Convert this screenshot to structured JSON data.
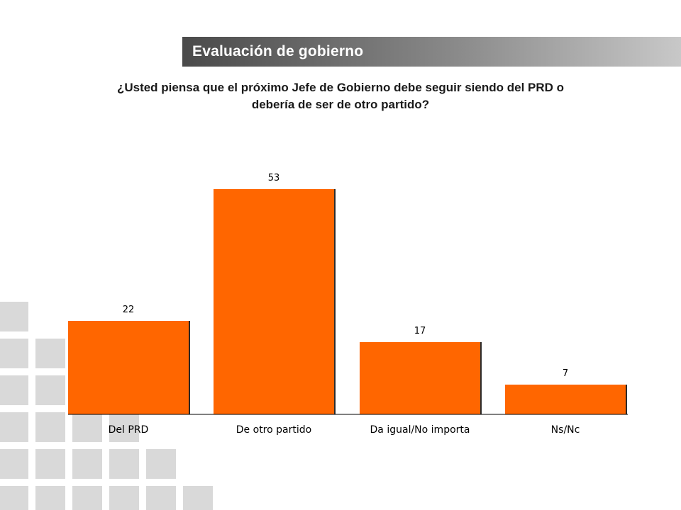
{
  "header": {
    "title": "Evaluación de gobierno"
  },
  "question": {
    "line1": "¿Usted piensa que el próximo Jefe de Gobierno debe seguir siendo del PRD o",
    "line2": "debería de ser de otro partido?"
  },
  "colors": {
    "bar": "#ff6600",
    "bar_shadow": "#2b2b2b",
    "decor_squares": "#d9d9d9"
  },
  "chart_data": {
    "type": "bar",
    "categories": [
      "Del PRD",
      "De otro partido",
      "Da igual/No importa",
      "Ns/Nc"
    ],
    "values": [
      22,
      53,
      17,
      7
    ],
    "data_labels": [
      "22",
      "53",
      "17",
      "7"
    ],
    "ylim": [
      0,
      53
    ],
    "grid": false,
    "legend": "none"
  }
}
